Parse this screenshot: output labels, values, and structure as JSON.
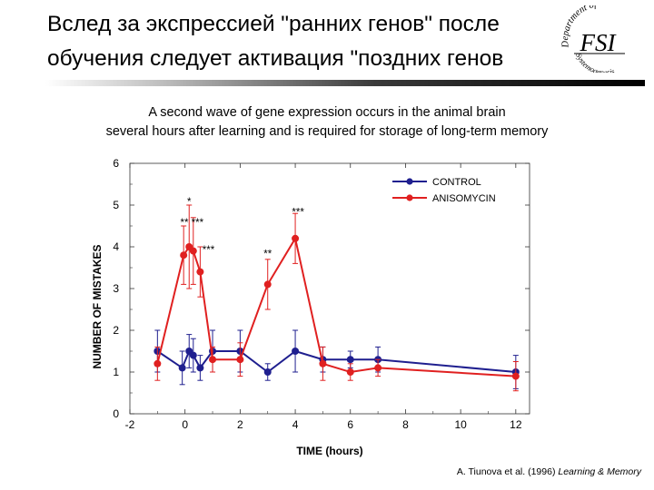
{
  "slide": {
    "title_line1": "Вслед за экспрессией \"ранних генов\" после",
    "title_line2": "обучения следует активация \"поздних генов",
    "subtitle_line1": "A second wave of gene expression occurs in the animal brain",
    "subtitle_line2": "several hours after learning and is required for storage of long-term memory",
    "citation_authors": "A. Tiunova et al. (1996)",
    "citation_journal": "Learning & Memory",
    "logo": {
      "top": "Department of",
      "center": "FSI",
      "bottom": "Systemogenesis"
    }
  },
  "colors": {
    "control": "#1f1f8f",
    "anisomycin": "#e02020",
    "axis": "#333333"
  },
  "chart_data": {
    "type": "line",
    "xlabel": "TIME (hours)",
    "ylabel": "NUMBER OF MISTAKES",
    "xlim": [
      -2,
      12.5
    ],
    "ylim": [
      0,
      6
    ],
    "xticks": [
      -2,
      0,
      2,
      4,
      6,
      8,
      10,
      12
    ],
    "yticks": [
      0,
      1,
      2,
      3,
      4,
      5,
      6
    ],
    "legend_position": "top-right",
    "series": [
      {
        "name": "CONTROL",
        "color": "#1f1f8f",
        "x": [
          -1,
          -0.1,
          0.15,
          0.3,
          0.55,
          1,
          2,
          3,
          4,
          5,
          6,
          7,
          12
        ],
        "y": [
          1.5,
          1.1,
          1.5,
          1.4,
          1.1,
          1.5,
          1.5,
          1.0,
          1.5,
          1.3,
          1.3,
          1.3,
          1.0
        ],
        "err": [
          0.5,
          0.4,
          0.4,
          0.4,
          0.3,
          0.5,
          0.5,
          0.2,
          0.5,
          0.3,
          0.2,
          0.3,
          0.4
        ]
      },
      {
        "name": "ANISOMYCIN",
        "color": "#e02020",
        "x": [
          -1,
          -0.05,
          0.15,
          0.3,
          0.55,
          1,
          2,
          3,
          4,
          5,
          6,
          7,
          12
        ],
        "y": [
          1.2,
          3.8,
          4.0,
          3.9,
          3.4,
          1.3,
          1.3,
          3.1,
          4.2,
          1.2,
          1.0,
          1.1,
          0.9
        ],
        "err": [
          0.4,
          0.7,
          1.0,
          0.8,
          0.6,
          0.3,
          0.4,
          0.6,
          0.6,
          0.4,
          0.2,
          0.2,
          0.35
        ]
      }
    ],
    "annotations": [
      {
        "text": "*",
        "x": 0.15,
        "y": 5.0
      },
      {
        "text": "** ***",
        "x": 0.25,
        "y": 4.5
      },
      {
        "text": "***",
        "x": 0.85,
        "y": 3.85
      },
      {
        "text": "**",
        "x": 3.0,
        "y": 3.75
      },
      {
        "text": "***",
        "x": 4.1,
        "y": 4.75
      }
    ]
  }
}
